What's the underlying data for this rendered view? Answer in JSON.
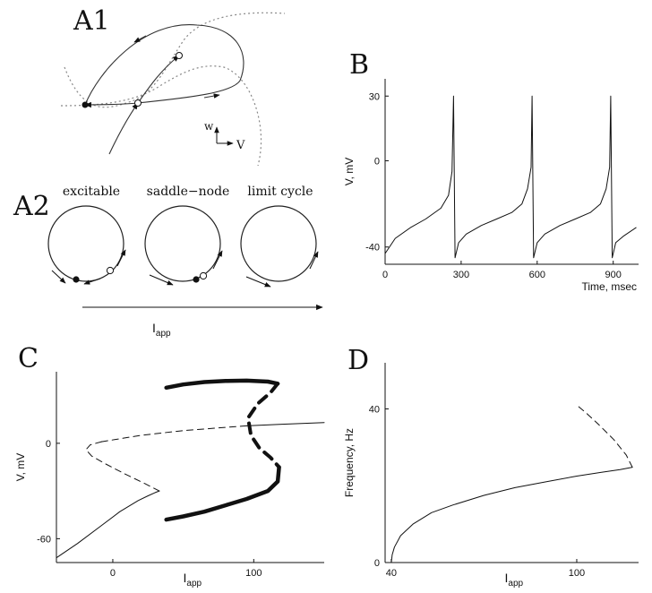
{
  "panels": {
    "a1": "A1",
    "a2": "A2",
    "b": "B",
    "c": "C",
    "d": "D"
  },
  "a1_axes": {
    "w": "w",
    "v": "V"
  },
  "a2": {
    "states": [
      "excitable",
      "saddle−node",
      "limit cycle"
    ],
    "arrow_label_main": "I",
    "arrow_label_sub": "app"
  },
  "chart_data": [
    {
      "id": "B",
      "type": "line",
      "title": "",
      "xlabel": "Time, msec",
      "ylabel": "V, mV",
      "xlim": [
        0,
        1000
      ],
      "ylim": [
        -48,
        38
      ],
      "xticks": [
        0,
        300,
        600,
        900
      ],
      "yticks": [
        -40,
        0,
        30
      ],
      "series": [
        {
          "x": [
            0,
            40,
            100,
            160,
            220,
            250,
            264,
            270,
            276,
            290,
            320,
            380,
            440,
            500,
            540,
            562,
            576,
            580,
            586,
            600,
            630,
            690,
            750,
            810,
            850,
            872,
            886,
            890,
            896,
            910,
            940,
            990
          ],
          "y": [
            -43,
            -36,
            -31,
            -27,
            -22,
            -16,
            -5,
            30,
            -45,
            -38,
            -34,
            -30,
            -27,
            -24,
            -20,
            -13,
            -3,
            30,
            -45,
            -38,
            -34,
            -30,
            -27,
            -24,
            -20,
            -13,
            -3,
            30,
            -45,
            -38,
            -35,
            -31
          ]
        }
      ]
    },
    {
      "id": "C",
      "type": "line",
      "title": "",
      "xlabel_main": "I",
      "xlabel_sub": "app",
      "ylabel": "V, mV",
      "xlim": [
        -40,
        150
      ],
      "ylim": [
        -75,
        45
      ],
      "xticks": [
        0,
        100
      ],
      "yticks": [
        -60,
        0
      ],
      "series": [
        {
          "name": "",
          "style": "stable",
          "x": [
            -40,
            -25,
            -10,
            5,
            18,
            25,
            30,
            33
          ],
          "y": [
            -72,
            -63,
            -53,
            -43,
            -36,
            -33,
            -31,
            -30
          ]
        },
        {
          "name": "",
          "style": "unstable",
          "x": [
            33,
            22,
            8,
            -5,
            -15,
            -19,
            -16,
            -8
          ],
          "y": [
            -30,
            -25,
            -19,
            -13,
            -8,
            -4,
            -1,
            1
          ]
        },
        {
          "name": "",
          "style": "unstable",
          "x": [
            -8,
            20,
            50,
            80,
            95
          ],
          "y": [
            1,
            5,
            8,
            10,
            11
          ]
        },
        {
          "name": "",
          "style": "stable",
          "x": [
            95,
            120,
            150
          ],
          "y": [
            11,
            12,
            13
          ]
        },
        {
          "name": "",
          "style": "stable-limit-cycle",
          "x": [
            38,
            50,
            65,
            80,
            95,
            110,
            117
          ],
          "y": [
            35,
            37,
            38.5,
            39.2,
            39.4,
            38.8,
            37.5
          ]
        },
        {
          "name": "",
          "style": "unstable-limit-cycle",
          "x": [
            117,
            112,
            103,
            96,
            98,
            104,
            112,
            118
          ],
          "y": [
            37.5,
            32,
            25,
            16,
            5,
            -3,
            -9,
            -15
          ]
        },
        {
          "name": "",
          "style": "stable-limit-cycle",
          "x": [
            118,
            117,
            110,
            95,
            80,
            65,
            50,
            38
          ],
          "y": [
            -15,
            -24,
            -30,
            -35,
            -39,
            -43,
            -46,
            -48
          ]
        }
      ]
    },
    {
      "id": "D",
      "type": "line",
      "title": "",
      "xlabel_main": "I",
      "xlabel_sub": "app",
      "ylabel": "Frequency, Hz",
      "xlim": [
        38,
        120
      ],
      "ylim": [
        0,
        52
      ],
      "xticks": [
        40,
        100
      ],
      "yticks": [
        0,
        40
      ],
      "series": [
        {
          "name": "",
          "style": "stable",
          "x": [
            40,
            40.3,
            41,
            43,
            47,
            53,
            60,
            70,
            80,
            90,
            100,
            108,
            114,
            118
          ],
          "y": [
            0,
            2,
            4,
            7,
            10,
            13,
            15,
            17.5,
            19.5,
            21,
            22.5,
            23.5,
            24.2,
            24.8
          ]
        },
        {
          "name": "",
          "style": "unstable",
          "x": [
            118,
            116,
            112,
            107,
            103,
            100
          ],
          "y": [
            24.8,
            28,
            32,
            36,
            39,
            41
          ]
        }
      ]
    }
  ]
}
